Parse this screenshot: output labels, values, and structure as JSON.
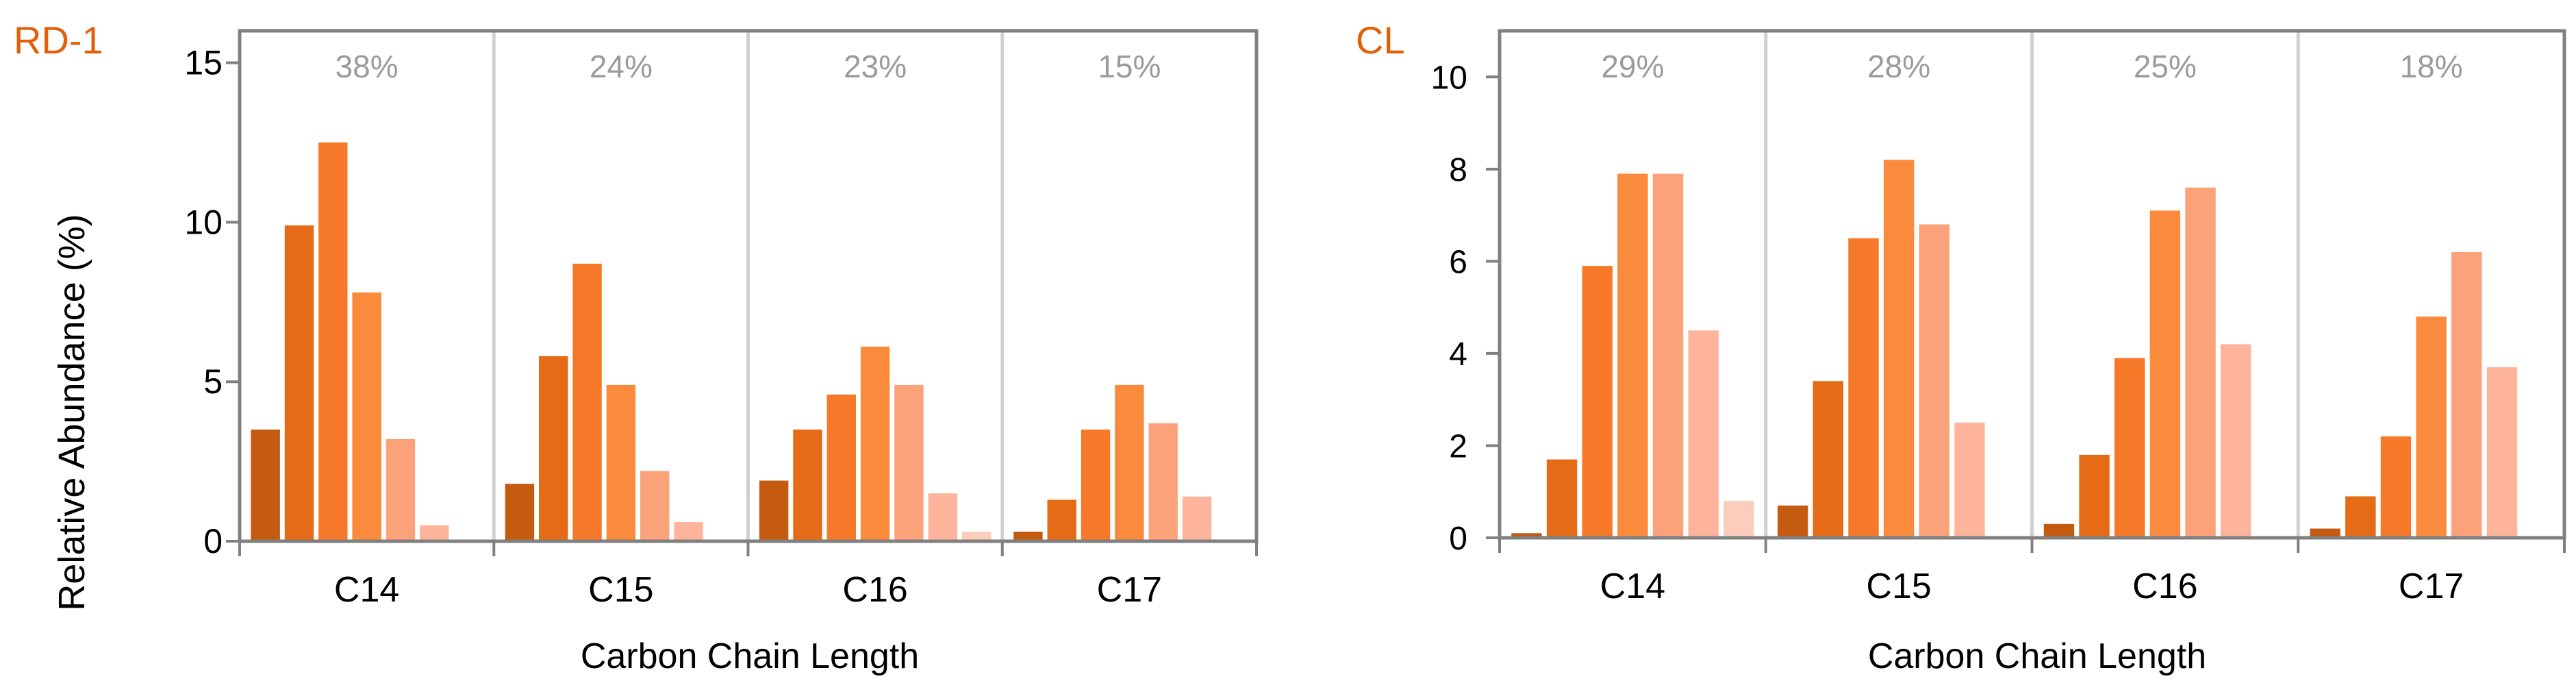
{
  "chart_data": [
    {
      "type": "bar",
      "panel_label": "RD-1",
      "panel_label_color": "#E2600A",
      "xlabel": "Carbon Chain Length",
      "ylabel": "Relative Abundance (%)",
      "ylim": [
        0,
        16
      ],
      "yticks": [
        "0",
        "5",
        "10",
        "15"
      ],
      "grid": false,
      "categories": [
        "C14",
        "C15",
        "C16",
        "C17"
      ],
      "group_percent_labels": [
        "38%",
        "24%",
        "23%",
        "15%"
      ],
      "series_colors": [
        "#C55A11",
        "#E56B16",
        "#F6792A",
        "#FB8B3C",
        "#FCA27A",
        "#FDB49A",
        "#FDCDBB"
      ],
      "groups": [
        [
          3.5,
          9.9,
          12.5,
          7.8,
          3.2,
          0.5
        ],
        [
          1.8,
          5.8,
          8.7,
          4.9,
          2.2,
          0.6
        ],
        [
          1.9,
          3.5,
          4.6,
          6.1,
          4.9,
          1.5,
          0.3
        ],
        [
          0.3,
          1.3,
          3.5,
          4.9,
          3.7,
          1.4
        ]
      ]
    },
    {
      "type": "bar",
      "panel_label": "CL",
      "panel_label_color": "#E2600A",
      "xlabel": "Carbon Chain Length",
      "ylabel": "",
      "ylim": [
        0,
        11
      ],
      "yticks": [
        "0",
        "2",
        "4",
        "6",
        "8",
        "10"
      ],
      "grid": false,
      "categories": [
        "C14",
        "C15",
        "C16",
        "C17"
      ],
      "group_percent_labels": [
        "29%",
        "28%",
        "25%",
        "18%"
      ],
      "series_colors": [
        "#C55A11",
        "#E56B16",
        "#F6792A",
        "#FB8B3C",
        "#FCA27A",
        "#FDB49A",
        "#FDCDBB"
      ],
      "groups": [
        [
          0.1,
          1.7,
          5.9,
          7.9,
          7.9,
          4.5,
          0.8
        ],
        [
          0.7,
          3.4,
          6.5,
          8.2,
          6.8,
          2.5
        ],
        [
          0.3,
          1.8,
          3.9,
          7.1,
          7.6,
          4.2
        ],
        [
          0.2,
          0.9,
          2.2,
          4.8,
          6.2,
          3.7
        ]
      ]
    }
  ]
}
